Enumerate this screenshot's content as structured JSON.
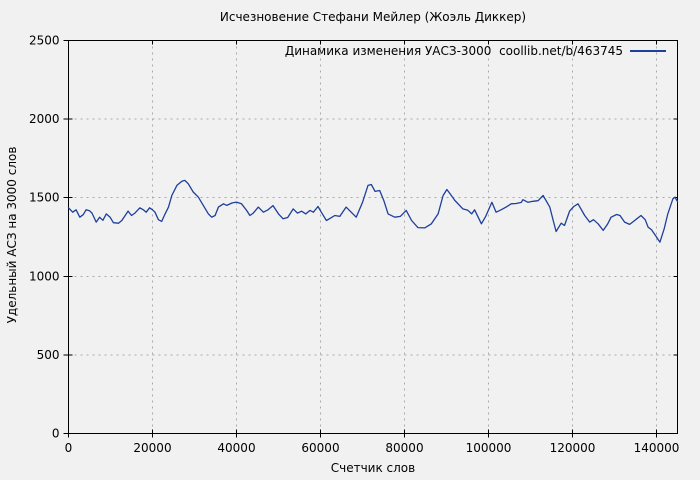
{
  "chart": {
    "title": "Исчезновение Стефани Мейлер (Жоэль Диккер)",
    "legend_label": "Динамика изменения УАСЗ-3000  coollib.net/b/463745",
    "xlabel": "Счетчик слов",
    "ylabel": "Удельный АСЗ на 3000 слов",
    "line_color": "#1e3f9b",
    "grid_color": "#aaaaaa",
    "axis_color": "#000000",
    "background_color": "#f1f1f1"
  },
  "chart_data": {
    "type": "line",
    "title": "Исчезновение Стефани Мейлер (Жоэль Диккер)",
    "xlabel": "Счетчик слов",
    "ylabel": "Удельный АСЗ на 3000 слов",
    "xlim": [
      0,
      145000
    ],
    "ylim": [
      0,
      2500
    ],
    "xticks": [
      0,
      20000,
      40000,
      60000,
      80000,
      100000,
      120000,
      140000
    ],
    "yticks": [
      0,
      500,
      1000,
      1500,
      2000,
      2500
    ],
    "grid": true,
    "legend_position": "top-right",
    "series": [
      {
        "name": "Динамика изменения УАСЗ-3000  coollib.net/b/463745",
        "color": "#1e3f9b",
        "x": [
          0,
          1000,
          1800,
          2700,
          3500,
          4200,
          5000,
          5600,
          6600,
          7400,
          8200,
          9000,
          9900,
          10700,
          11900,
          12700,
          13500,
          14200,
          15000,
          15800,
          17000,
          17800,
          18500,
          19300,
          20000,
          20600,
          21400,
          22200,
          23000,
          23800,
          24600,
          25800,
          27000,
          27700,
          28500,
          29700,
          30900,
          32100,
          33300,
          34100,
          34900,
          35700,
          36900,
          37700,
          38900,
          40000,
          41200,
          42400,
          43200,
          44000,
          45200,
          46400,
          47500,
          48700,
          50000,
          51100,
          52200,
          53500,
          54500,
          55500,
          56500,
          57500,
          58300,
          59400,
          60200,
          61400,
          62400,
          63400,
          64600,
          66100,
          67300,
          68500,
          70000,
          71300,
          72100,
          73000,
          74100,
          75100,
          76100,
          77700,
          79000,
          80400,
          81700,
          83200,
          84800,
          86400,
          88000,
          89200,
          90100,
          91000,
          92000,
          93900,
          95100,
          96000,
          96700,
          98300,
          99300,
          100800,
          101800,
          103000,
          104200,
          105400,
          106600,
          107800,
          108200,
          109400,
          110600,
          111800,
          113000,
          114600,
          115400,
          116100,
          117300,
          118100,
          119300,
          120300,
          121300,
          122900,
          124100,
          125000,
          126100,
          127300,
          128300,
          129200,
          130500,
          131300,
          132400,
          133600,
          134800,
          136300,
          137300,
          138000,
          138800,
          140000,
          140800,
          141800,
          142700,
          143900,
          144400,
          145000
        ],
        "y": [
          1436,
          1408,
          1423,
          1376,
          1392,
          1423,
          1417,
          1402,
          1345,
          1376,
          1356,
          1397,
          1376,
          1341,
          1338,
          1355,
          1387,
          1415,
          1387,
          1402,
          1436,
          1423,
          1408,
          1436,
          1423,
          1408,
          1360,
          1349,
          1397,
          1440,
          1514,
          1578,
          1605,
          1610,
          1589,
          1536,
          1504,
          1451,
          1397,
          1376,
          1387,
          1440,
          1461,
          1451,
          1466,
          1472,
          1461,
          1419,
          1387,
          1402,
          1440,
          1408,
          1423,
          1450,
          1397,
          1366,
          1374,
          1429,
          1402,
          1414,
          1397,
          1419,
          1408,
          1444,
          1408,
          1355,
          1370,
          1387,
          1381,
          1440,
          1408,
          1376,
          1470,
          1578,
          1584,
          1540,
          1546,
          1480,
          1397,
          1376,
          1381,
          1419,
          1355,
          1310,
          1308,
          1334,
          1397,
          1514,
          1552,
          1520,
          1482,
          1429,
          1420,
          1397,
          1423,
          1334,
          1380,
          1471,
          1408,
          1423,
          1440,
          1461,
          1463,
          1470,
          1487,
          1471,
          1477,
          1481,
          1514,
          1440,
          1355,
          1285,
          1338,
          1323,
          1415,
          1444,
          1461,
          1387,
          1345,
          1360,
          1334,
          1292,
          1330,
          1376,
          1393,
          1387,
          1345,
          1330,
          1355,
          1387,
          1360,
          1313,
          1296,
          1250,
          1217,
          1300,
          1397,
          1493,
          1503,
          1475
        ]
      }
    ]
  }
}
